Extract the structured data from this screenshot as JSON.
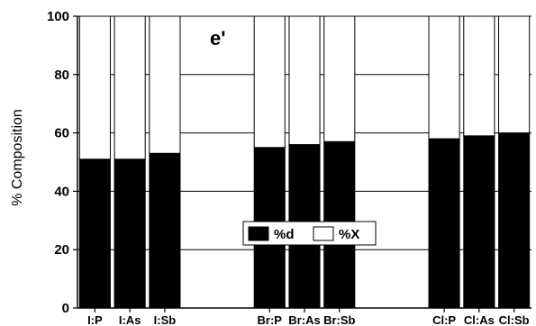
{
  "chart_data": {
    "type": "bar",
    "stacked": true,
    "panel_label": "e'",
    "ylabel": "% Composition",
    "xlabel": "",
    "ylim": [
      0,
      100
    ],
    "yticks": [
      0,
      20,
      40,
      60,
      80,
      100
    ],
    "grid": true,
    "legend_position": "lower-center",
    "groups": [
      {
        "name": "I",
        "categories": [
          "I:P",
          "I:As",
          "I:Sb"
        ]
      },
      {
        "name": "Br",
        "categories": [
          "Br:P",
          "Br:As",
          "Br:Sb"
        ]
      },
      {
        "name": "Cl",
        "categories": [
          "Cl:P",
          "Cl:As",
          "Cl:Sb"
        ]
      }
    ],
    "categories": [
      "I:P",
      "I:As",
      "I:Sb",
      "Br:P",
      "Br:As",
      "Br:Sb",
      "Cl:P",
      "Cl:As",
      "Cl:Sb"
    ],
    "series": [
      {
        "name": "%d",
        "color": "#000000",
        "values": [
          51,
          51,
          53,
          55,
          56,
          57,
          58,
          59,
          60
        ]
      },
      {
        "name": "%X",
        "color": "#ffffff",
        "values": [
          49,
          49,
          47,
          45,
          44,
          43,
          42,
          41,
          40
        ]
      }
    ]
  }
}
